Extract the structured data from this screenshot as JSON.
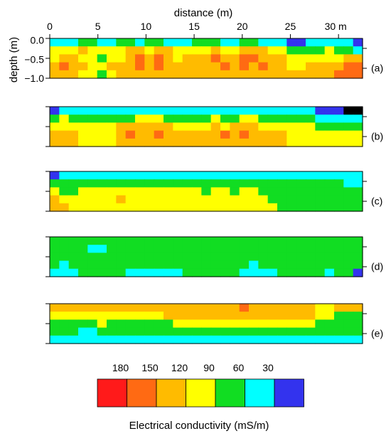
{
  "chart_data": {
    "type": "heatmap",
    "xlabel": "distance (m)",
    "ylabel": "depth (m)",
    "x_ticks": [
      "0",
      "5",
      "10",
      "15",
      "20",
      "25",
      "30 m"
    ],
    "x_tick_values": [
      0,
      5,
      10,
      15,
      20,
      25,
      30
    ],
    "y_ticks": [
      "0.0",
      "−0.5",
      "−1.0"
    ],
    "y_tick_values": [
      0,
      -0.5,
      -1.0
    ],
    "xlim": [
      0,
      32.5
    ],
    "ylim": [
      -1.0,
      0.05
    ],
    "panels": [
      {
        "label": "(a)",
        "grid": [
          [
            5,
            5,
            5,
            4,
            4,
            5,
            5,
            4,
            4,
            5,
            4,
            4,
            5,
            5,
            5,
            4,
            4,
            4,
            5,
            5,
            4,
            4,
            5,
            5,
            5,
            6,
            6,
            5,
            5,
            5,
            5,
            5,
            6
          ],
          [
            3,
            3,
            3,
            2,
            3,
            3,
            3,
            3,
            2,
            2,
            3,
            2,
            2,
            3,
            3,
            3,
            3,
            2,
            3,
            3,
            2,
            2,
            2,
            3,
            3,
            4,
            4,
            4,
            4,
            3,
            4,
            4,
            5
          ],
          [
            3,
            2,
            2,
            3,
            3,
            4,
            3,
            3,
            2,
            1,
            2,
            1,
            2,
            3,
            2,
            2,
            2,
            1,
            2,
            2,
            1,
            1,
            2,
            2,
            2,
            3,
            3,
            3,
            3,
            3,
            3,
            2,
            2
          ],
          [
            2,
            1,
            2,
            2,
            3,
            3,
            2,
            2,
            2,
            1,
            2,
            1,
            2,
            2,
            2,
            2,
            2,
            2,
            1,
            2,
            1,
            2,
            1,
            2,
            2,
            3,
            3,
            2,
            2,
            2,
            2,
            1,
            1
          ],
          [
            2,
            2,
            2,
            3,
            3,
            4,
            3,
            2,
            2,
            2,
            2,
            2,
            2,
            2,
            2,
            2,
            2,
            2,
            2,
            2,
            2,
            2,
            2,
            2,
            2,
            2,
            2,
            2,
            2,
            2,
            1,
            1,
            1
          ]
        ]
      },
      {
        "label": "(b)",
        "grid": [
          [
            6,
            5,
            5,
            5,
            5,
            5,
            5,
            5,
            5,
            5,
            5,
            5,
            5,
            5,
            5,
            5,
            5,
            5,
            5,
            5,
            5,
            5,
            5,
            5,
            5,
            5,
            5,
            5,
            6,
            6,
            6,
            7,
            7
          ],
          [
            4,
            3,
            4,
            4,
            4,
            4,
            4,
            4,
            4,
            3,
            3,
            3,
            4,
            4,
            4,
            4,
            4,
            3,
            4,
            4,
            3,
            3,
            4,
            4,
            4,
            4,
            4,
            4,
            5,
            5,
            5,
            5,
            5
          ],
          [
            3,
            3,
            3,
            3,
            3,
            3,
            3,
            2,
            2,
            2,
            2,
            2,
            2,
            3,
            3,
            3,
            3,
            2,
            3,
            2,
            2,
            2,
            3,
            3,
            3,
            3,
            3,
            3,
            4,
            4,
            4,
            4,
            4
          ],
          [
            2,
            2,
            2,
            3,
            3,
            3,
            3,
            2,
            1,
            2,
            2,
            1,
            2,
            2,
            2,
            2,
            2,
            2,
            1,
            2,
            1,
            2,
            2,
            2,
            2,
            3,
            3,
            3,
            3,
            3,
            3,
            3,
            3
          ],
          [
            2,
            2,
            2,
            3,
            3,
            3,
            3,
            2,
            2,
            2,
            2,
            2,
            2,
            2,
            2,
            2,
            2,
            2,
            2,
            2,
            2,
            2,
            2,
            2,
            2,
            3,
            3,
            3,
            3,
            3,
            3,
            3,
            3
          ]
        ]
      },
      {
        "label": "(c)",
        "grid": [
          [
            6,
            5,
            5,
            5,
            5,
            5,
            5,
            5,
            5,
            5,
            5,
            5,
            5,
            5,
            5,
            5,
            5,
            5,
            5,
            5,
            5,
            5,
            5,
            5,
            5,
            5,
            5,
            5,
            5,
            5,
            5,
            5,
            5
          ],
          [
            4,
            4,
            4,
            4,
            4,
            4,
            4,
            4,
            4,
            4,
            4,
            4,
            4,
            4,
            4,
            4,
            4,
            4,
            4,
            4,
            4,
            4,
            4,
            4,
            4,
            4,
            4,
            4,
            4,
            4,
            4,
            5,
            5
          ],
          [
            3,
            4,
            4,
            3,
            3,
            3,
            3,
            3,
            3,
            3,
            3,
            3,
            3,
            3,
            3,
            3,
            4,
            3,
            3,
            4,
            3,
            3,
            4,
            4,
            4,
            4,
            4,
            4,
            4,
            4,
            4,
            4,
            4
          ],
          [
            2,
            3,
            3,
            3,
            3,
            3,
            3,
            2,
            3,
            3,
            3,
            3,
            3,
            3,
            3,
            3,
            3,
            3,
            3,
            3,
            3,
            3,
            3,
            4,
            4,
            4,
            4,
            4,
            4,
            4,
            4,
            4,
            4
          ],
          [
            2,
            2,
            3,
            3,
            3,
            3,
            3,
            3,
            3,
            3,
            3,
            3,
            3,
            3,
            3,
            3,
            3,
            3,
            3,
            3,
            3,
            3,
            3,
            3,
            4,
            4,
            4,
            4,
            4,
            4,
            4,
            4,
            4
          ]
        ]
      },
      {
        "label": "(d)",
        "grid": [
          [
            4,
            4,
            4,
            4,
            4,
            4,
            4,
            4,
            4,
            4,
            4,
            4,
            4,
            4,
            4,
            4,
            4,
            4,
            4,
            4,
            4,
            4,
            4,
            4,
            4,
            4,
            4,
            4,
            4,
            4,
            4,
            4,
            4
          ],
          [
            4,
            4,
            4,
            4,
            5,
            5,
            4,
            4,
            4,
            4,
            4,
            4,
            4,
            4,
            4,
            4,
            4,
            4,
            4,
            4,
            4,
            4,
            4,
            4,
            4,
            4,
            4,
            4,
            4,
            4,
            4,
            4,
            4
          ],
          [
            4,
            4,
            4,
            4,
            4,
            4,
            4,
            4,
            4,
            4,
            4,
            4,
            4,
            4,
            4,
            4,
            4,
            4,
            4,
            4,
            4,
            4,
            4,
            4,
            4,
            4,
            4,
            4,
            4,
            4,
            4,
            4,
            4
          ],
          [
            4,
            5,
            4,
            4,
            4,
            4,
            4,
            4,
            4,
            4,
            4,
            4,
            4,
            4,
            4,
            4,
            4,
            4,
            4,
            4,
            4,
            5,
            4,
            4,
            4,
            4,
            4,
            4,
            4,
            4,
            4,
            4,
            4
          ],
          [
            5,
            5,
            5,
            4,
            4,
            4,
            4,
            4,
            5,
            5,
            5,
            5,
            5,
            5,
            4,
            4,
            4,
            4,
            4,
            4,
            5,
            5,
            5,
            5,
            4,
            4,
            4,
            4,
            4,
            5,
            4,
            4,
            6
          ]
        ]
      },
      {
        "label": "(e)",
        "grid": [
          [
            2,
            2,
            2,
            2,
            2,
            2,
            2,
            2,
            2,
            2,
            2,
            2,
            2,
            2,
            2,
            2,
            2,
            2,
            2,
            2,
            1,
            2,
            2,
            2,
            2,
            2,
            2,
            2,
            3,
            3,
            2,
            2,
            2
          ],
          [
            3,
            3,
            3,
            3,
            3,
            3,
            3,
            3,
            3,
            3,
            3,
            3,
            2,
            2,
            2,
            2,
            2,
            2,
            2,
            2,
            2,
            2,
            2,
            2,
            2,
            2,
            2,
            2,
            3,
            3,
            4,
            4,
            4
          ],
          [
            4,
            4,
            4,
            4,
            4,
            3,
            4,
            4,
            4,
            4,
            4,
            4,
            4,
            3,
            3,
            3,
            3,
            3,
            3,
            3,
            3,
            3,
            3,
            3,
            3,
            3,
            3,
            3,
            4,
            4,
            4,
            4,
            4
          ],
          [
            4,
            4,
            4,
            5,
            5,
            4,
            4,
            4,
            4,
            4,
            4,
            4,
            4,
            4,
            4,
            4,
            4,
            4,
            4,
            4,
            4,
            4,
            4,
            4,
            4,
            4,
            4,
            4,
            4,
            4,
            4,
            4,
            4
          ],
          [
            5,
            5,
            5,
            5,
            5,
            5,
            5,
            5,
            5,
            5,
            5,
            5,
            5,
            5,
            5,
            5,
            5,
            5,
            5,
            5,
            5,
            5,
            5,
            5,
            5,
            5,
            5,
            5,
            5,
            5,
            5,
            5,
            5
          ]
        ]
      }
    ],
    "colorbar": {
      "title": "Electrical conductivity (mS/m)",
      "tick_labels": [
        "180",
        "150",
        "120",
        "90",
        "60",
        "30"
      ],
      "classes": [
        {
          "color": "#ff1a1a"
        },
        {
          "color": "#ff6a13"
        },
        {
          "color": "#ffbb00"
        },
        {
          "color": "#ffff00"
        },
        {
          "color": "#11dd22"
        },
        {
          "color": "#00ffff"
        },
        {
          "color": "#3333ee"
        }
      ]
    }
  }
}
